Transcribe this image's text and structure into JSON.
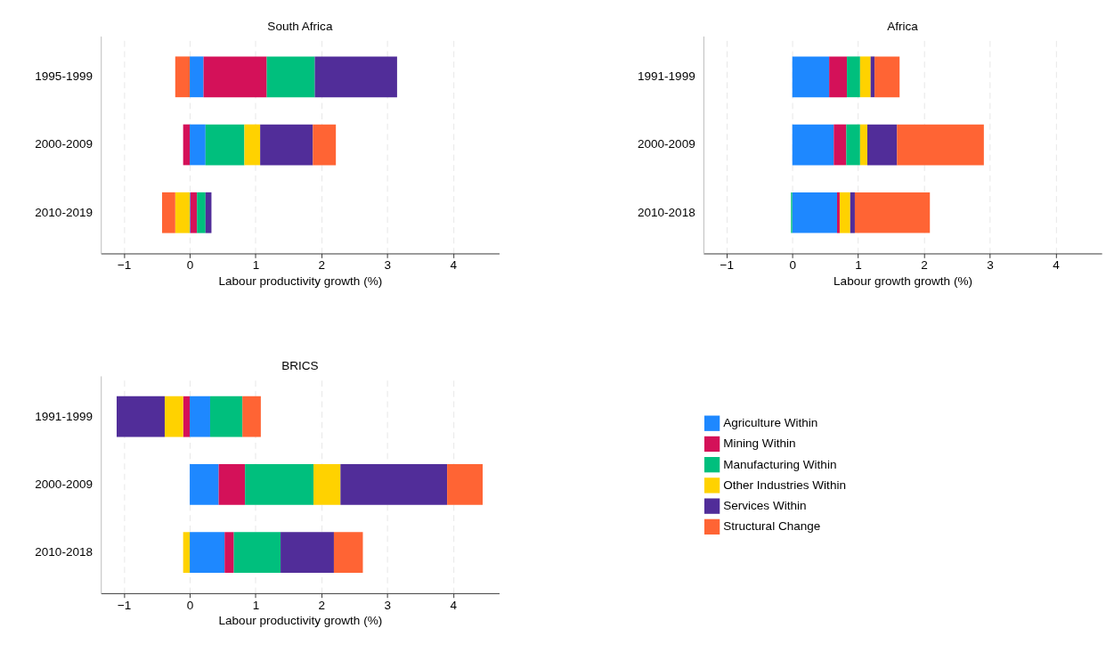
{
  "chart_data": [
    {
      "type": "bar",
      "orientation": "horizontal",
      "stacked": true,
      "title": "South Africa",
      "xlabel": "Labour productivity growth (%)",
      "categories": [
        "1995-1999",
        "2000-2009",
        "2010-2019"
      ],
      "xlim": [
        -1.35,
        4.7
      ],
      "xticks": [
        -1,
        0,
        1,
        2,
        3,
        4
      ],
      "grid": "x",
      "legend": "bottom right",
      "series": [
        {
          "name": "Agriculture Within",
          "color": "#1e88ff",
          "values": [
            0.21,
            0.24,
            0.01
          ]
        },
        {
          "name": "Mining Within",
          "color": "#d41159",
          "values": [
            0.96,
            -0.1,
            0.1
          ]
        },
        {
          "name": "Manufacturing Within",
          "color": "#00bf7d",
          "values": [
            0.73,
            0.59,
            0.13
          ]
        },
        {
          "name": "Other Industries Within",
          "color": "#ffd200",
          "values": [
            null,
            0.24,
            -0.22
          ]
        },
        {
          "name": "Services Within",
          "color": "#512d99",
          "values": [
            1.25,
            0.8,
            0.09
          ]
        },
        {
          "name": "Structural Change",
          "color": "#ff6434",
          "values": [
            -0.22,
            0.35,
            -0.2
          ]
        }
      ]
    },
    {
      "type": "bar",
      "orientation": "horizontal",
      "stacked": true,
      "title": "Africa",
      "xlabel": "Labour growth growth (%)",
      "categories": [
        "1991-1999",
        "2000-2009",
        "2010-2018"
      ],
      "xlim": [
        -1.35,
        4.7
      ],
      "xticks": [
        -1,
        0,
        1,
        2,
        3,
        4
      ],
      "grid": "x",
      "series": [
        {
          "name": "Agriculture Within",
          "color": "#1e88ff",
          "values": [
            0.56,
            0.63,
            0.68
          ]
        },
        {
          "name": "Mining Within",
          "color": "#d41159",
          "values": [
            0.27,
            0.19,
            0.04
          ]
        },
        {
          "name": "Manufacturing Within",
          "color": "#00bf7d",
          "values": [
            0.2,
            0.21,
            -0.02
          ]
        },
        {
          "name": "Other Industries Within",
          "color": "#ffd200",
          "values": [
            0.16,
            0.11,
            0.16
          ]
        },
        {
          "name": "Services Within",
          "color": "#512d99",
          "values": [
            0.06,
            0.45,
            0.07
          ]
        },
        {
          "name": "Structural Change",
          "color": "#ff6434",
          "values": [
            0.38,
            1.32,
            1.14
          ]
        }
      ]
    },
    {
      "type": "bar",
      "orientation": "horizontal",
      "stacked": true,
      "title": "BRICS",
      "xlabel": "Labour productivity growth (%)",
      "categories": [
        "1991-1999",
        "2000-2009",
        "2010-2018"
      ],
      "xlim": [
        -1.35,
        4.7
      ],
      "xticks": [
        -1,
        0,
        1,
        2,
        3,
        4
      ],
      "grid": "x",
      "series": [
        {
          "name": "Agriculture Within",
          "color": "#1e88ff",
          "values": [
            0.31,
            0.44,
            0.53
          ]
        },
        {
          "name": "Mining Within",
          "color": "#d41159",
          "values": [
            -0.1,
            0.4,
            0.14
          ]
        },
        {
          "name": "Manufacturing Within",
          "color": "#00bf7d",
          "values": [
            0.49,
            1.04,
            0.71
          ]
        },
        {
          "name": "Other Industries Within",
          "color": "#ffd200",
          "values": [
            -0.28,
            0.41,
            -0.1
          ]
        },
        {
          "name": "Services Within",
          "color": "#512d99",
          "values": [
            -0.73,
            1.62,
            0.81
          ]
        },
        {
          "name": "Structural Change",
          "color": "#ff6434",
          "values": [
            0.28,
            0.54,
            0.44
          ]
        }
      ]
    }
  ]
}
